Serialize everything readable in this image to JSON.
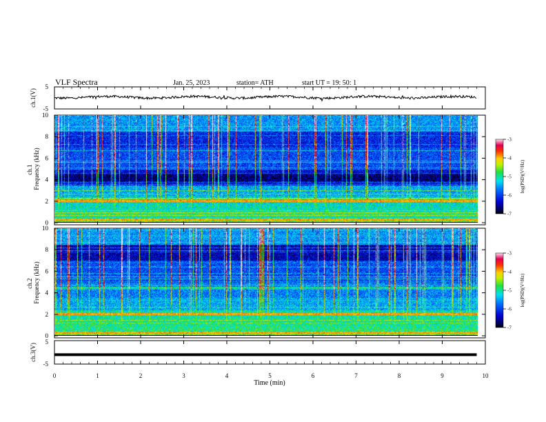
{
  "header": {
    "title": "VLF  Spectra",
    "date": "Jan. 25, 2023",
    "station": "station= ATH",
    "start": "start  UT  =    19: 50: 1"
  },
  "chart_data": [
    {
      "type": "line",
      "name": "ch1-waveform",
      "ylabel": "ch.1(V)",
      "ylim": [
        -5,
        5
      ],
      "ytick_labels": [
        "5",
        "-5"
      ],
      "xlim": [
        0,
        10
      ],
      "trace_color": "#000000",
      "trace_level_volts": 0.3,
      "trace_span_min": 9.8
    },
    {
      "type": "heatmap",
      "name": "ch1-spectrogram",
      "ylabel": "ch.1\nFrequency (kHz)",
      "ylim": [
        0,
        10
      ],
      "ytick_labels": [
        "0",
        "2",
        "4",
        "6",
        "8",
        "10"
      ],
      "xlim": [
        0,
        9.8
      ],
      "colorbar": {
        "label": "log(PSD)(V²/Hz)",
        "range": [
          -7,
          -3
        ],
        "tick_labels": [
          "-3",
          "-4",
          "-5",
          "-6",
          "-7"
        ]
      }
    },
    {
      "type": "heatmap",
      "name": "ch2-spectrogram",
      "ylabel": "ch.2\nFrequency (kHz)",
      "ylim": [
        0,
        10
      ],
      "ytick_labels": [
        "0",
        "2",
        "4",
        "6",
        "8",
        "10"
      ],
      "xlim": [
        0,
        9.8
      ],
      "colorbar": {
        "label": "log(PSD)(V²/Hz)",
        "range": [
          -7,
          -3
        ],
        "tick_labels": [
          "-3",
          "-4",
          "-5",
          "-6",
          "-7"
        ]
      }
    },
    {
      "type": "line",
      "name": "ch3-waveform",
      "ylabel": "ch.3(V)",
      "ylim": [
        -5,
        5
      ],
      "ytick_labels": [
        "5",
        "-5"
      ],
      "xlim": [
        0,
        10
      ],
      "trace_color": "#000000",
      "trace_level_volts": -1.0,
      "trace_span_min": 9.8,
      "xlabel": "Time  (min)",
      "xtick_labels": [
        "0",
        "1",
        "2",
        "3",
        "4",
        "5",
        "6",
        "7",
        "8",
        "9",
        "10"
      ]
    }
  ]
}
